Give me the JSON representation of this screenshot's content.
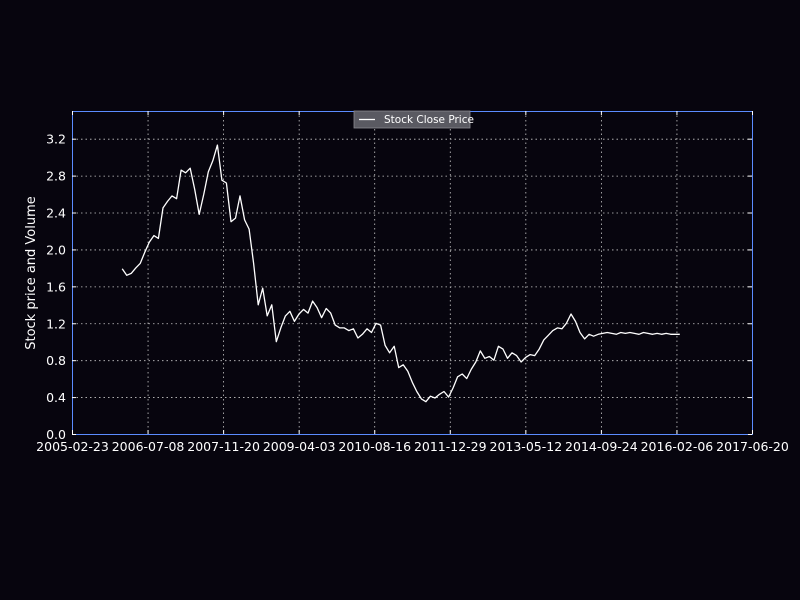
{
  "chart_data": {
    "type": "line",
    "title": "",
    "xlabel": "",
    "ylabel": "Stock price and Volume",
    "x_ticks": [
      "2005-02-23",
      "2006-07-08",
      "2007-11-20",
      "2009-04-03",
      "2010-08-16",
      "2011-12-29",
      "2013-05-12",
      "2014-09-24",
      "2016-02-06",
      "2017-06-20"
    ],
    "xlim": [
      "2005-02-23",
      "2017-06-20"
    ],
    "y_ticks": [
      "0.0",
      "0.4",
      "0.8",
      "1.2",
      "1.6",
      "2.0",
      "2.4",
      "2.8",
      "3.2"
    ],
    "ylim": [
      0,
      3.5
    ],
    "grid": true,
    "legend": {
      "position": "upper center",
      "entries": [
        "Stock Close Price"
      ]
    },
    "colors": {
      "background": "#07050e",
      "line": "#ffffff",
      "frame": "#5b8cff",
      "grid": "#c8c8c8",
      "legend_bg": "#5a5a62"
    },
    "series": [
      {
        "name": "Stock Close Price",
        "x": [
          "2006-01-21",
          "2006-02-20",
          "2006-03-22",
          "2006-04-21",
          "2006-05-21",
          "2006-06-20",
          "2006-07-20",
          "2006-08-19",
          "2006-09-18",
          "2006-10-18",
          "2006-11-17",
          "2006-12-17",
          "2007-01-16",
          "2007-02-15",
          "2007-03-17",
          "2007-04-16",
          "2007-05-16",
          "2007-06-15",
          "2007-07-15",
          "2007-08-14",
          "2007-09-13",
          "2007-10-13",
          "2007-11-12",
          "2007-12-12",
          "2008-01-11",
          "2008-02-10",
          "2008-03-11",
          "2008-04-10",
          "2008-05-10",
          "2008-06-09",
          "2008-07-09",
          "2008-08-08",
          "2008-09-07",
          "2008-10-07",
          "2008-11-06",
          "2008-12-06",
          "2009-01-05",
          "2009-02-04",
          "2009-03-06",
          "2009-04-05",
          "2009-05-05",
          "2009-06-04",
          "2009-07-04",
          "2009-08-03",
          "2009-09-02",
          "2009-10-02",
          "2009-11-01",
          "2009-12-01",
          "2009-12-31",
          "2010-01-30",
          "2010-03-01",
          "2010-03-31",
          "2010-04-30",
          "2010-05-30",
          "2010-06-29",
          "2010-07-29",
          "2010-08-28",
          "2010-09-27",
          "2010-10-27",
          "2010-11-26",
          "2010-12-26",
          "2011-01-25",
          "2011-02-24",
          "2011-03-26",
          "2011-04-25",
          "2011-05-25",
          "2011-06-24",
          "2011-07-24",
          "2011-08-23",
          "2011-09-22",
          "2011-10-22",
          "2011-11-21",
          "2011-12-21",
          "2012-01-20",
          "2012-02-19",
          "2012-03-20",
          "2012-04-19",
          "2012-05-19",
          "2012-06-18",
          "2012-07-18",
          "2012-08-17",
          "2012-09-16",
          "2012-10-16",
          "2012-11-15",
          "2012-12-15",
          "2013-01-14",
          "2013-02-13",
          "2013-03-15",
          "2013-04-14",
          "2013-05-14",
          "2013-06-13",
          "2013-07-13",
          "2013-08-12",
          "2013-09-11",
          "2013-10-11",
          "2013-11-10",
          "2013-12-10",
          "2014-01-09",
          "2014-02-08",
          "2014-03-10",
          "2014-04-09",
          "2014-05-09",
          "2014-06-08",
          "2014-07-08",
          "2014-08-07",
          "2014-09-06",
          "2014-10-06",
          "2014-11-05",
          "2014-12-05",
          "2015-01-04",
          "2015-02-03",
          "2015-03-05",
          "2015-04-04",
          "2015-05-04",
          "2015-06-03",
          "2015-07-03",
          "2015-08-02",
          "2015-09-01",
          "2015-10-01",
          "2015-10-31",
          "2015-11-30",
          "2015-12-30",
          "2016-01-29",
          "2016-02-28"
        ],
        "values": [
          1.79,
          1.72,
          1.74,
          1.8,
          1.85,
          1.97,
          2.08,
          2.15,
          2.12,
          2.45,
          2.52,
          2.58,
          2.55,
          2.86,
          2.83,
          2.88,
          2.65,
          2.38,
          2.6,
          2.84,
          2.96,
          3.13,
          2.75,
          2.72,
          2.3,
          2.34,
          2.58,
          2.32,
          2.22,
          1.85,
          1.4,
          1.58,
          1.28,
          1.4,
          1.0,
          1.15,
          1.28,
          1.33,
          1.22,
          1.3,
          1.35,
          1.31,
          1.44,
          1.37,
          1.26,
          1.36,
          1.31,
          1.18,
          1.15,
          1.15,
          1.12,
          1.14,
          1.04,
          1.08,
          1.14,
          1.1,
          1.2,
          1.18,
          0.96,
          0.88,
          0.95,
          0.72,
          0.75,
          0.68,
          0.56,
          0.46,
          0.38,
          0.35,
          0.41,
          0.39,
          0.43,
          0.46,
          0.4,
          0.5,
          0.62,
          0.65,
          0.6,
          0.7,
          0.78,
          0.9,
          0.82,
          0.84,
          0.8,
          0.95,
          0.92,
          0.82,
          0.88,
          0.85,
          0.78,
          0.83,
          0.86,
          0.85,
          0.92,
          1.02,
          1.07,
          1.12,
          1.15,
          1.14,
          1.2,
          1.3,
          1.22,
          1.1,
          1.03,
          1.08,
          1.06,
          1.08,
          1.09,
          1.1,
          1.09,
          1.08,
          1.1,
          1.09,
          1.1,
          1.09,
          1.08,
          1.1,
          1.09,
          1.08,
          1.09,
          1.08,
          1.09,
          1.08,
          1.08,
          1.08
        ]
      }
    ]
  }
}
